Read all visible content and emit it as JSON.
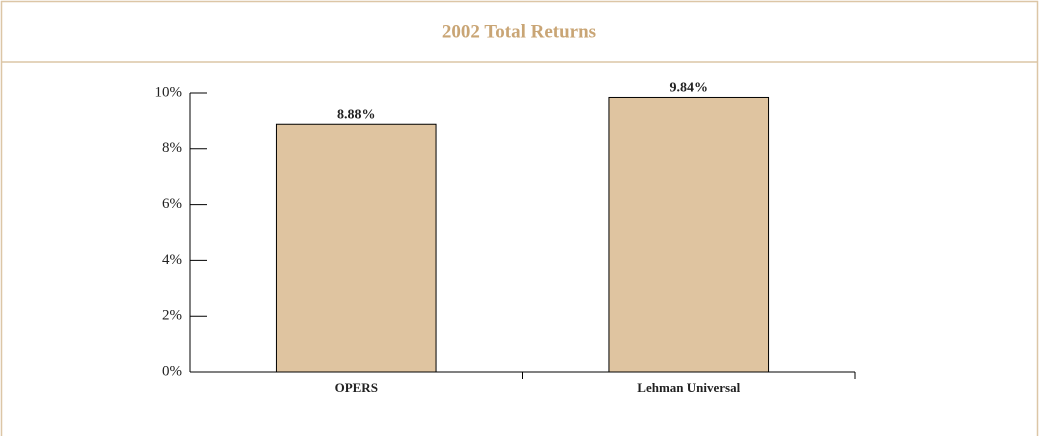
{
  "chart_data": {
    "type": "bar",
    "title": "2002 Total Returns",
    "categories": [
      "OPERS",
      "Lehman Universal"
    ],
    "values": [
      8.88,
      9.84
    ],
    "value_labels": [
      "8.88%",
      "9.84%"
    ],
    "color": "#dfc4a0",
    "ylim": [
      0,
      10
    ],
    "yticks": [
      {
        "value": 0,
        "label": "0%"
      },
      {
        "value": 2,
        "label": "2%"
      },
      {
        "value": 4,
        "label": "4%"
      },
      {
        "value": 6,
        "label": "6%"
      },
      {
        "value": 8,
        "label": "8%"
      },
      {
        "value": 10,
        "label": "10%"
      }
    ],
    "grid": false
  }
}
